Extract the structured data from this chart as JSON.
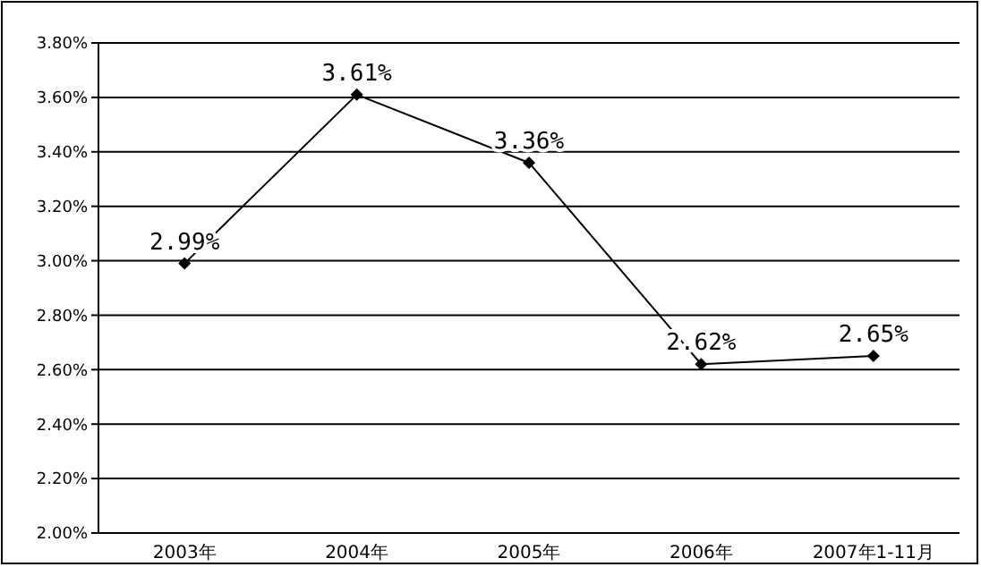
{
  "chart_data": {
    "type": "line",
    "categories": [
      "2003年",
      "2004年",
      "2005年",
      "2006年",
      "2007年1-11月"
    ],
    "series": [
      {
        "color": "#000000",
        "values": [
          2.99,
          3.61,
          3.36,
          2.62,
          2.65
        ],
        "value_labels": [
          "2.99%",
          "3.61%",
          "3.36%",
          "2.62%",
          "2.65%"
        ]
      }
    ],
    "ylim": [
      2.0,
      3.8
    ],
    "yticks": [
      {
        "value": 2.0,
        "label": "2.00%"
      },
      {
        "value": 2.2,
        "label": "2.20%"
      },
      {
        "value": 2.4,
        "label": "2.40%"
      },
      {
        "value": 2.6,
        "label": "2.60%"
      },
      {
        "value": 2.8,
        "label": "2.80%"
      },
      {
        "value": 3.0,
        "label": "3.00%"
      },
      {
        "value": 3.2,
        "label": "3.20%"
      },
      {
        "value": 3.4,
        "label": "3.40%"
      },
      {
        "value": 3.6,
        "label": "3.60%"
      },
      {
        "value": 3.8,
        "label": "3.80%"
      }
    ],
    "grid": "y",
    "marker": "diamond",
    "line_style": "solid"
  }
}
